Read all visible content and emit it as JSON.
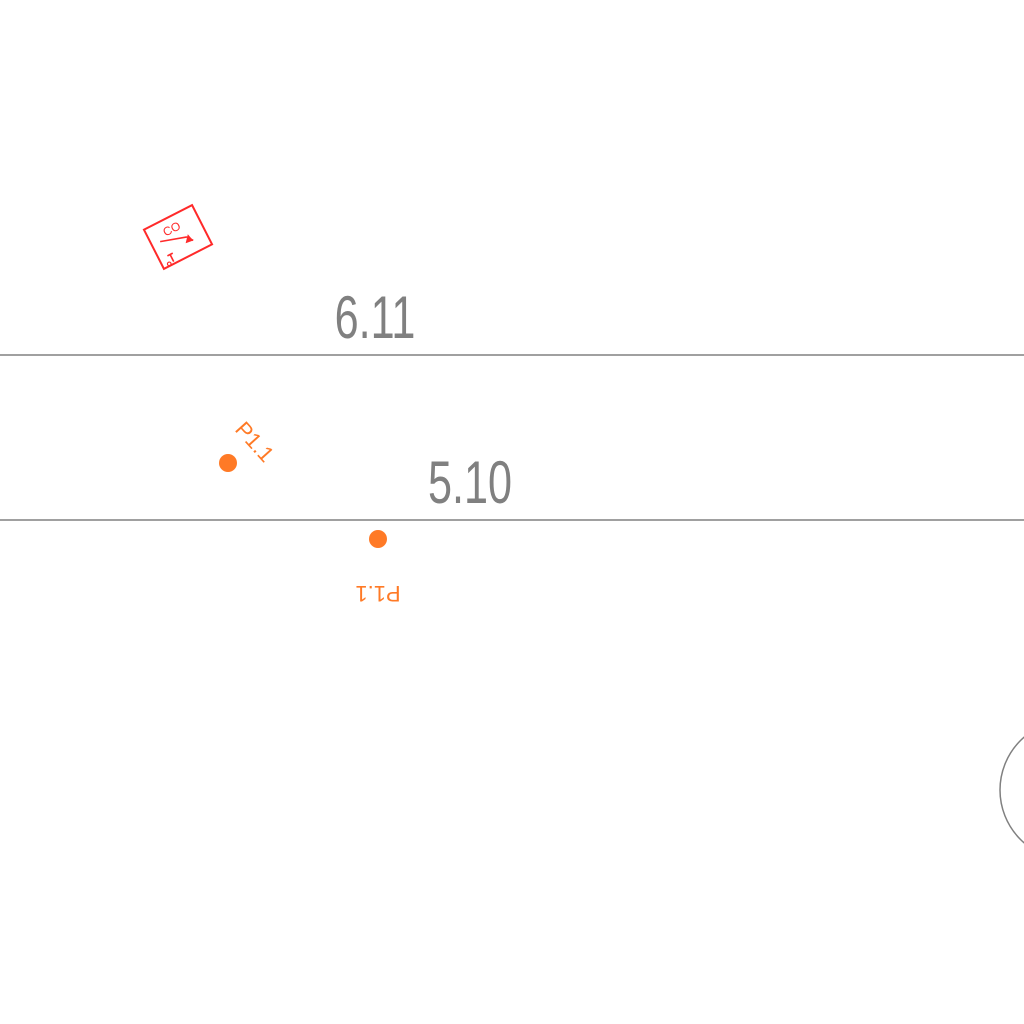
{
  "colors": {
    "background": "#ffffff",
    "linework": "#808080",
    "point_marker": "#ff7a26",
    "symbol": "#ff2a2a"
  },
  "dimensions": {
    "upper": "6.11",
    "lower": "5.10"
  },
  "points": [
    {
      "label": "P1.1",
      "orientation": "rotated"
    },
    {
      "label": "P1.1",
      "orientation": "upside-down"
    }
  ],
  "symbol": {
    "label": "CO",
    "icon": "cleanout-symbol-icon"
  }
}
